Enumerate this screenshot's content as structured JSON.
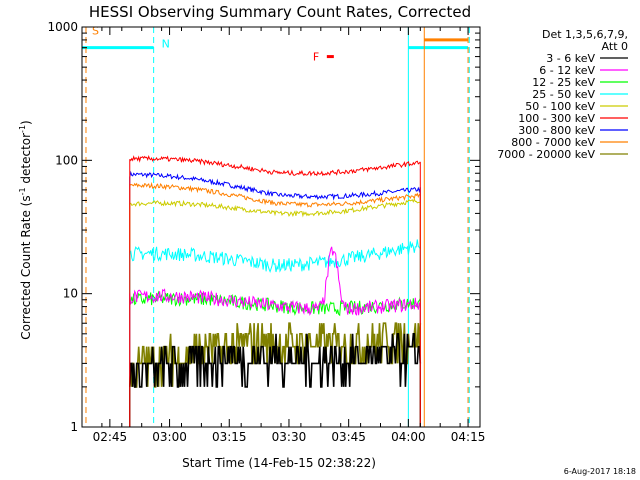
{
  "chart_data": {
    "type": "line",
    "title": "HESSI Observing Summary Count Rates, Corrected",
    "xlabel": "Start Time (14-Feb-15 02:38:22)",
    "ylabel_main": "Corrected Count Rate (s",
    "ylabel_sup1": "-1",
    "ylabel_mid": " detector",
    "ylabel_sup2": "-1",
    "ylabel_end": ")",
    "yscale": "log",
    "ylim": [
      1,
      1000
    ],
    "xlim_minutes": [
      0,
      100
    ],
    "x_tick_labels": [
      "02:45",
      "03:00",
      "03:15",
      "03:30",
      "03:45",
      "04:00",
      "04:15"
    ],
    "x_tick_minutes": [
      7,
      22,
      37,
      52,
      67,
      82,
      97
    ],
    "y_tick_labels": [
      "1",
      "10",
      "100",
      "1000"
    ],
    "y_tick_values": [
      1,
      10,
      100,
      1000
    ],
    "legend_header": [
      "Det 1,3,5,6,7,9,",
      "Att 0"
    ],
    "series": [
      {
        "name": "3 - 6 keV",
        "color": "#000000",
        "values_start": 2.3,
        "values_mid": 3.5,
        "values_end": 3.3
      },
      {
        "name": "6 - 12 keV",
        "color": "#ff00ff",
        "values_start": 9.0,
        "values_mid": 8.5,
        "values_end": 8.0,
        "peak_minute": 63,
        "peak_value": 22
      },
      {
        "name": "12 - 25 keV",
        "color": "#00ff00",
        "values_start": 8.5,
        "values_mid": 8.5,
        "values_end": 8.2
      },
      {
        "name": "25 - 50 keV",
        "color": "#00ffff",
        "values_start": 19,
        "values_mid": 17,
        "values_end": 22
      },
      {
        "name": "50 - 100 keV",
        "color": "#cccc00",
        "values_start": 45,
        "values_mid": 42,
        "values_end": 48
      },
      {
        "name": "100 - 300 keV",
        "color": "#ff0000",
        "values_start": 98,
        "values_mid": 85,
        "values_end": 92
      },
      {
        "name": "300 - 800 keV",
        "color": "#0000ff",
        "values_start": 75,
        "values_mid": 58,
        "values_end": 58
      },
      {
        "name": "800 - 7000 keV",
        "color": "#ff8000",
        "values_start": 62,
        "values_mid": 50,
        "values_end": 52
      },
      {
        "name": "7000 - 20000 keV",
        "color": "#808000",
        "values_start": 2.5,
        "values_mid": 4.5,
        "values_end": 4.5
      }
    ],
    "data_start_minute": 12,
    "data_end_minute": 85,
    "vertical_markers": [
      {
        "minute": 1,
        "color": "#ff8000",
        "dashed": true
      },
      {
        "minute": 18,
        "color": "#00ffff",
        "dashed": true
      },
      {
        "minute": 82,
        "color": "#00ffff",
        "dashed": false
      },
      {
        "minute": 86,
        "color": "#ff8000",
        "dashed": false
      },
      {
        "minute": 97,
        "color": "#ff8000",
        "dashed": true
      },
      {
        "minute": 97.3,
        "color": "#00ffff",
        "dashed": true
      }
    ],
    "horizontal_bars": [
      {
        "minute_start": 0,
        "minute_end": 18,
        "value": 700,
        "color": "#00ffff"
      },
      {
        "minute_start": 82,
        "minute_end": 97,
        "value": 700,
        "color": "#00ffff"
      },
      {
        "minute_start": 86,
        "minute_end": 97,
        "value": 800,
        "color": "#ff8000"
      }
    ],
    "text_markers": [
      {
        "label": "S",
        "minute": 2.5,
        "value": 880,
        "color": "#ff8000"
      },
      {
        "label": "N",
        "minute": 20,
        "value": 700,
        "color": "#00ffff"
      },
      {
        "label": "F",
        "minute": 58,
        "value": 560,
        "color": "#ff0000"
      }
    ],
    "footer_date": "6-Aug-2017 18:18"
  }
}
